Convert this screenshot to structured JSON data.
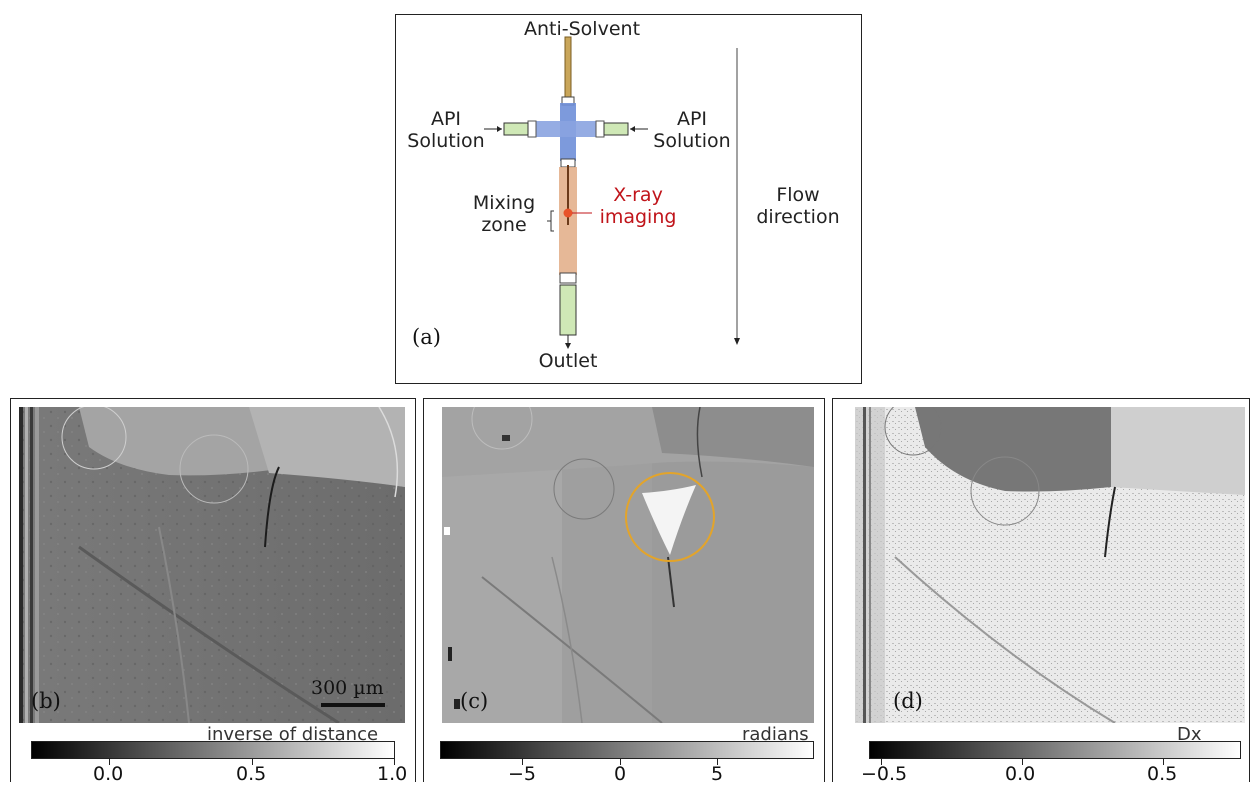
{
  "diagram": {
    "label_top": "Anti-Solvent",
    "label_left": "API\nSolution",
    "label_right": "API\nSolution",
    "label_mixing": "Mixing\nzone",
    "label_xray": "X-ray\nimaging",
    "label_flow": "Flow\ndirection",
    "label_outlet": "Outlet",
    "panel_label": "(a)"
  },
  "panel_b": {
    "label": "(b)",
    "scalebar": "300 µm",
    "colorbar_title": "inverse of distance",
    "ticks": [
      "0.0",
      "0.5",
      "1.0"
    ]
  },
  "panel_c": {
    "label": "(c)",
    "colorbar_title": "radians",
    "ticks": [
      "−5",
      "0",
      "5"
    ]
  },
  "panel_d": {
    "label": "(d)",
    "colorbar_title": "Dx",
    "ticks": [
      "−0.5",
      "0.0",
      "0.5"
    ]
  },
  "colors": {
    "blue_channel": "#6f8fd8",
    "orange_channel": "#e3b08c",
    "green_tube": "#cfe8b6",
    "xray_red": "#c0141a",
    "highlight_circle": "#e3a42a"
  }
}
